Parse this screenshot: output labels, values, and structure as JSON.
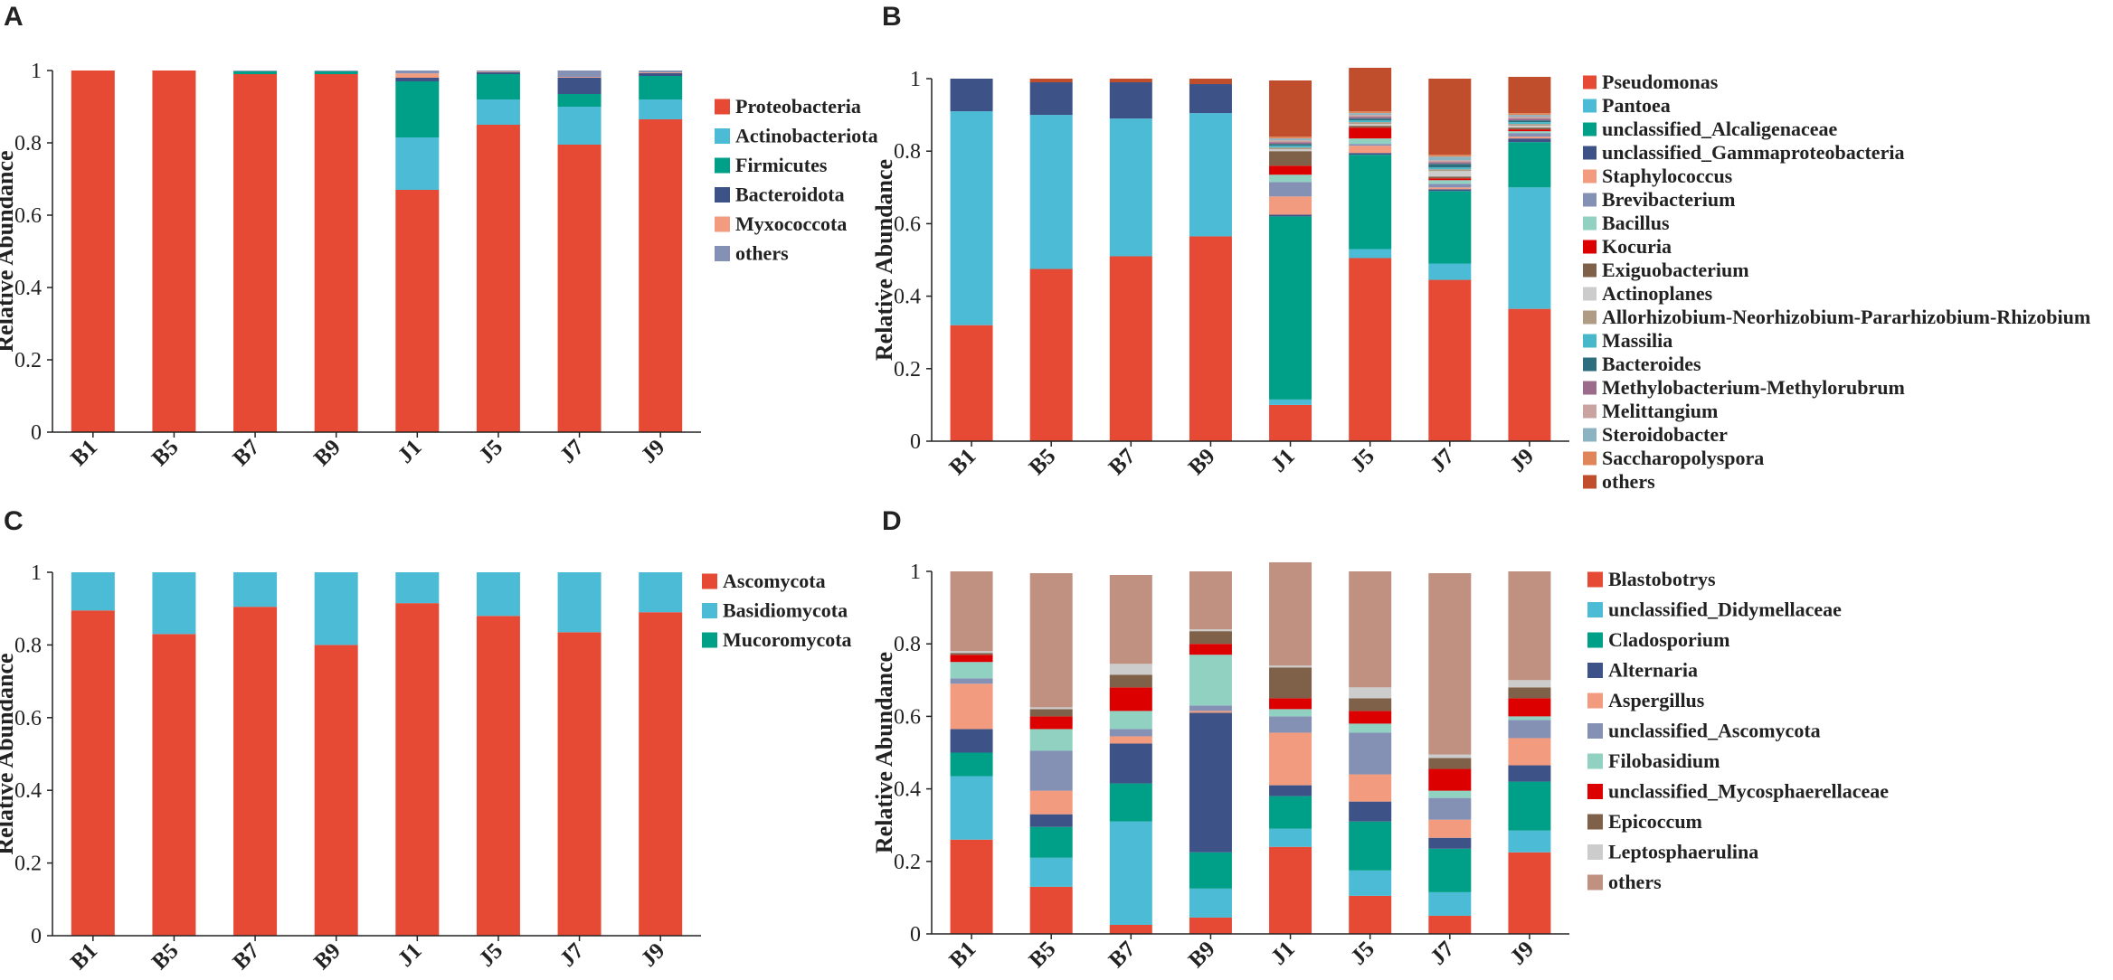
{
  "chart_data": [
    {
      "type": "bar",
      "stacked": true,
      "panel": "A",
      "ylabel": "Relative Abundance",
      "xlabel": "",
      "ylim": [
        0,
        1
      ],
      "yticks": [
        "0",
        "0.2",
        "0.4",
        "0.6",
        "0.8",
        "1"
      ],
      "categories": [
        "B1",
        "B5",
        "B7",
        "B9",
        "J1",
        "J5",
        "J7",
        "J9"
      ],
      "legend_position": "right",
      "series": [
        {
          "name": "Proteobacteria",
          "color": "#e64a35",
          "values": [
            1.0,
            1.0,
            0.99,
            0.99,
            0.67,
            0.85,
            0.795,
            0.865
          ]
        },
        {
          "name": "Actinobacteriota",
          "color": "#4cbbd6",
          "values": [
            0,
            0,
            0,
            0,
            0.145,
            0.07,
            0.105,
            0.055
          ]
        },
        {
          "name": "Firmicutes",
          "color": "#00a088",
          "values": [
            0,
            0,
            0.008,
            0.008,
            0.155,
            0.07,
            0.035,
            0.065
          ]
        },
        {
          "name": "Bacteroidota",
          "color": "#3d5387",
          "values": [
            0,
            0,
            0,
            0,
            0.01,
            0.005,
            0.045,
            0.008
          ]
        },
        {
          "name": "Myxococcota",
          "color": "#f39b7f",
          "values": [
            0,
            0,
            0,
            0,
            0.012,
            0.002,
            0.002,
            0.002
          ]
        },
        {
          "name": "others",
          "color": "#8491b4",
          "values": [
            0,
            0,
            0.002,
            0.002,
            0.008,
            0.003,
            0.018,
            0.005
          ]
        }
      ]
    },
    {
      "type": "bar",
      "stacked": true,
      "panel": "B",
      "ylabel": "Relative Abundance",
      "xlabel": "",
      "ylim": [
        0,
        1
      ],
      "yticks": [
        "0",
        "0.2",
        "0.4",
        "0.6",
        "0.8",
        "1"
      ],
      "categories": [
        "B1",
        "B5",
        "B7",
        "B9",
        "J1",
        "J5",
        "J7",
        "J9"
      ],
      "legend_position": "right",
      "series": [
        {
          "name": "Pseudomonas",
          "color": "#e64a35",
          "values": [
            0.32,
            0.475,
            0.51,
            0.565,
            0.1,
            0.505,
            0.445,
            0.365
          ]
        },
        {
          "name": "Pantoea",
          "color": "#4cbbd6",
          "values": [
            0.59,
            0.425,
            0.38,
            0.34,
            0.015,
            0.025,
            0.045,
            0.335
          ]
        },
        {
          "name": "unclassified_Alcaligenaceae",
          "color": "#00a088",
          "values": [
            0,
            0,
            0,
            0,
            0.505,
            0.26,
            0.2,
            0.125
          ]
        },
        {
          "name": "unclassified_Gammaproteobacteria",
          "color": "#3d5387",
          "values": [
            0.09,
            0.09,
            0.1,
            0.08,
            0.005,
            0.005,
            0.005,
            0.01
          ]
        },
        {
          "name": "Staphylococcus",
          "color": "#f39b7f",
          "values": [
            0,
            0,
            0,
            0,
            0.05,
            0.02,
            0.005,
            0.005
          ]
        },
        {
          "name": "Brevibacterium",
          "color": "#8491b4",
          "values": [
            0,
            0,
            0,
            0,
            0.04,
            0.005,
            0.01,
            0.01
          ]
        },
        {
          "name": "Bacillus",
          "color": "#91d1c2",
          "values": [
            0,
            0,
            0,
            0,
            0.02,
            0.015,
            0.01,
            0.005
          ]
        },
        {
          "name": "Kocuria",
          "color": "#dc0000",
          "values": [
            0,
            0,
            0,
            0,
            0.025,
            0.03,
            0.005,
            0.005
          ]
        },
        {
          "name": "Exiguobacterium",
          "color": "#7e6148",
          "values": [
            0,
            0,
            0,
            0,
            0.04,
            0.005,
            0.005,
            0.005
          ]
        },
        {
          "name": "Actinoplanes",
          "color": "#cccccc",
          "values": [
            0,
            0,
            0,
            0,
            0.005,
            0.005,
            0.015,
            0.005
          ]
        },
        {
          "name": "Allorhizobium-Neorhizobium-Pararhizobium-Rhizobium",
          "color": "#b09c85",
          "values": [
            0,
            0,
            0,
            0,
            0.005,
            0.005,
            0.005,
            0.005
          ]
        },
        {
          "name": "Massilia",
          "color": "#46b8c9",
          "values": [
            0,
            0,
            0,
            0,
            0.005,
            0.005,
            0.005,
            0.005
          ]
        },
        {
          "name": "Bacteroides",
          "color": "#2d6e7e",
          "values": [
            0,
            0,
            0,
            0,
            0.005,
            0.005,
            0.01,
            0.005
          ]
        },
        {
          "name": "Methylobacterium-Methylorubrum",
          "color": "#9c6b8b",
          "values": [
            0,
            0,
            0,
            0,
            0.005,
            0.005,
            0.005,
            0.005
          ]
        },
        {
          "name": "Melittangium",
          "color": "#c9a3a0",
          "values": [
            0,
            0,
            0,
            0,
            0.005,
            0.005,
            0.005,
            0.005
          ]
        },
        {
          "name": "Steroidobacter",
          "color": "#8cb3c2",
          "values": [
            0,
            0,
            0,
            0,
            0.005,
            0.005,
            0.01,
            0.005
          ]
        },
        {
          "name": "Saccharopolyspora",
          "color": "#e0845a",
          "values": [
            0,
            0,
            0,
            0,
            0.005,
            0.005,
            0.005,
            0.005
          ]
        },
        {
          "name": "others",
          "color": "#c04e2d",
          "values": [
            0,
            0.01,
            0.01,
            0.015,
            0.155,
            0.12,
            0.21,
            0.1
          ]
        }
      ]
    },
    {
      "type": "bar",
      "stacked": true,
      "panel": "C",
      "ylabel": "Relative Abundance",
      "xlabel": "",
      "ylim": [
        0,
        1
      ],
      "yticks": [
        "0",
        "0.2",
        "0.4",
        "0.6",
        "0.8",
        "1"
      ],
      "categories": [
        "B1",
        "B5",
        "B7",
        "B9",
        "J1",
        "J5",
        "J7",
        "J9"
      ],
      "legend_position": "right",
      "series": [
        {
          "name": "Ascomycota",
          "color": "#e64a35",
          "values": [
            0.895,
            0.83,
            0.905,
            0.8,
            0.915,
            0.88,
            0.835,
            0.89
          ]
        },
        {
          "name": "Basidiomycota",
          "color": "#4cbbd6",
          "values": [
            0.105,
            0.17,
            0.095,
            0.2,
            0.085,
            0.12,
            0.165,
            0.11
          ]
        },
        {
          "name": "Mucoromycota",
          "color": "#00a088",
          "values": [
            0,
            0,
            0,
            0,
            0,
            0,
            0,
            0
          ]
        }
      ]
    },
    {
      "type": "bar",
      "stacked": true,
      "panel": "D",
      "ylabel": "Relative Abundance",
      "xlabel": "",
      "ylim": [
        0,
        1
      ],
      "yticks": [
        "0",
        "0.2",
        "0.4",
        "0.6",
        "0.8",
        "1"
      ],
      "categories": [
        "B1",
        "B5",
        "B7",
        "B9",
        "J1",
        "J5",
        "J7",
        "J9"
      ],
      "legend_position": "right",
      "series": [
        {
          "name": "Blastobotrys",
          "color": "#e64a35",
          "values": [
            0.26,
            0.13,
            0.025,
            0.045,
            0.24,
            0.105,
            0.05,
            0.225
          ]
        },
        {
          "name": "unclassified_Didymellaceae",
          "color": "#4cbbd6",
          "values": [
            0.175,
            0.08,
            0.285,
            0.08,
            0.05,
            0.07,
            0.065,
            0.06
          ]
        },
        {
          "name": "Cladosporium",
          "color": "#00a088",
          "values": [
            0.065,
            0.085,
            0.105,
            0.1,
            0.09,
            0.135,
            0.12,
            0.135
          ]
        },
        {
          "name": "Alternaria",
          "color": "#3d5387",
          "values": [
            0.065,
            0.035,
            0.11,
            0.385,
            0.03,
            0.055,
            0.03,
            0.045
          ]
        },
        {
          "name": "Aspergillus",
          "color": "#f39b7f",
          "values": [
            0.125,
            0.065,
            0.02,
            0.005,
            0.145,
            0.075,
            0.05,
            0.075
          ]
        },
        {
          "name": "unclassified_Ascomycota",
          "color": "#8491b4",
          "values": [
            0.015,
            0.11,
            0.02,
            0.015,
            0.045,
            0.115,
            0.06,
            0.05
          ]
        },
        {
          "name": "Filobasidium",
          "color": "#91d1c2",
          "values": [
            0.045,
            0.06,
            0.05,
            0.14,
            0.02,
            0.025,
            0.02,
            0.01
          ]
        },
        {
          "name": "unclassified_Mycosphaerellaceae",
          "color": "#dc0000",
          "values": [
            0.02,
            0.035,
            0.065,
            0.03,
            0.03,
            0.035,
            0.06,
            0.05
          ]
        },
        {
          "name": "Epicoccum",
          "color": "#7e6148",
          "values": [
            0.005,
            0.02,
            0.035,
            0.035,
            0.085,
            0.035,
            0.03,
            0.03
          ]
        },
        {
          "name": "Leptosphaerulina",
          "color": "#cccccc",
          "values": [
            0.005,
            0.005,
            0.03,
            0.005,
            0.005,
            0.03,
            0.01,
            0.02
          ]
        },
        {
          "name": "others",
          "color": "#c09081",
          "values": [
            0.22,
            0.37,
            0.245,
            0.16,
            0.285,
            0.32,
            0.5,
            0.3
          ]
        }
      ]
    }
  ]
}
